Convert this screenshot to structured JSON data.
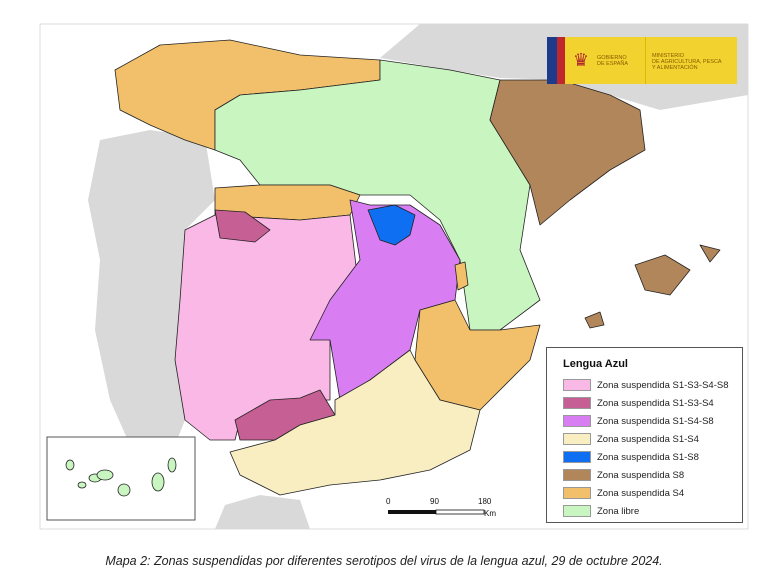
{
  "logo": {
    "line1": "GOBIERNO",
    "line2": "DE ESPAÑA",
    "ministry1": "MINISTERIO",
    "ministry2": "DE AGRICULTURA, PESCA",
    "ministry3": "Y ALIMENTACIÓN"
  },
  "legend": {
    "title": "Lengua Azul",
    "items": [
      {
        "label": "Zona suspendida S1-S3-S4-S8",
        "color": "#f9b8e6"
      },
      {
        "label": "Zona suspendida S1-S3-S4",
        "color": "#c65f93"
      },
      {
        "label": "Zona suspendida S1-S4-S8",
        "color": "#d97ef2"
      },
      {
        "label": "Zona suspendida S1-S4",
        "color": "#f8eec2"
      },
      {
        "label": "Zona suspendida S1-S8",
        "color": "#0f6ff2"
      },
      {
        "label": "Zona suspendida S8",
        "color": "#b1865a"
      },
      {
        "label": "Zona suspendida S4",
        "color": "#f2bf6a"
      },
      {
        "label": "Zona libre",
        "color": "#c9f5c0"
      }
    ]
  },
  "scale": {
    "t0": "0",
    "t1": "90",
    "t2": "180",
    "unit": "Km"
  },
  "caption": "Mapa 2: Zonas suspendidas por diferentes serotipos del virus de la lengua azul, 29 de octubre 2024.",
  "colors": {
    "foreign_land": "#d9d9d9",
    "border": "#222222"
  }
}
